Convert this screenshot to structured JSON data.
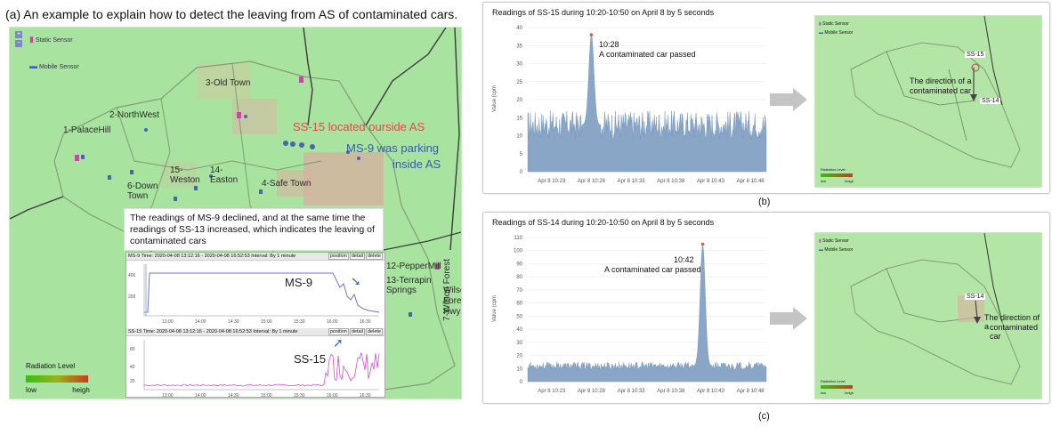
{
  "captions": {
    "a": "(a) An example to explain how to detect the leaving from AS of contaminated cars.",
    "b": "(b)",
    "c": "(c)"
  },
  "panel_a": {
    "legend": {
      "static": "Static Sensor",
      "mobile": "Mobile Sensor"
    },
    "districts": [
      "3-Old Town",
      "2-NorthWest",
      "1-PalaceHill",
      "6-Down Town",
      "15-Weston",
      "14-Easton",
      "4-Safe Town",
      "12-PepperMill",
      "13-Terrapin Springs",
      "7-Wilson Forest",
      "Wilson Forest Hwy"
    ],
    "ss15_label": "SS-15 located ourside AS",
    "ms9_label_1": "MS-9 was parking",
    "ms9_label_2": "inside AS",
    "note": "The readings of MS-9 declined, and at the same time the readings of SS-13 increased, which indicates the leaving of contaminated cars",
    "ms9_chart": {
      "header": "MS-9   Time: 2020-04-08 13:12:16 - 2020-04-08 16:52:53   Interval: By 1 minute",
      "buttons": [
        "position",
        "detail",
        "delete"
      ],
      "label": "MS-9",
      "y_ticks": [
        "400",
        "200"
      ],
      "x_ticks": [
        "13:00",
        "14:00",
        "14:30",
        "15:00",
        "15:30",
        "16:00",
        "16:30"
      ]
    },
    "ss15_chart": {
      "header": "SS-15   Time: 2020-04-08 13:12:16 - 2020-04-08 16:52:53   Interval: By 1 minute",
      "buttons": [
        "position",
        "detail",
        "delete"
      ],
      "label": "SS-15",
      "y_ticks": [
        "80",
        "40",
        "20"
      ],
      "x_ticks": [
        "13:00",
        "14:00",
        "14:30",
        "15:00",
        "15:30",
        "16:00",
        "16:30"
      ]
    },
    "radiation": {
      "title": "Radiation Level",
      "low": "low",
      "high": "heigh"
    }
  },
  "panel_b": {
    "title": "Readings of SS-15 during 10:20-10:50 on April 8 by 5 seconds",
    "ylabel": "Value (cpm",
    "annotation_time": "10:28",
    "annotation_text": "A contaminated car passed",
    "map": {
      "static": "Static Sensor",
      "mobile": "Mobile Sensor",
      "ss15": "SS-15",
      "ss14": "SS-14",
      "direction_1": "The direction of a",
      "direction_2": "contaminated car",
      "radiation": "Radiation Level",
      "low": "low",
      "high": "heigh"
    }
  },
  "panel_c": {
    "title": "Readings of SS-14 during 10:20-10:50 on April 8 by 5 seconds",
    "ylabel": "Value (cpm",
    "annotation_time": "10:42",
    "annotation_text": "A contaminated car passed",
    "map": {
      "static": "Static Sensor",
      "mobile": "Mobile Sensor",
      "ss14": "SS-14",
      "direction_1": "The direction of a",
      "direction_2": "contaminated car",
      "radiation": "Radiation Level",
      "low": "low",
      "high": "heigh"
    }
  },
  "chart_data": [
    {
      "type": "area",
      "title": "Readings of SS-15 during 10:20-10:50 on April 8 by 5 seconds",
      "ylabel": "Value (cpm",
      "ylim": [
        0,
        40
      ],
      "y_ticks": [
        0,
        5,
        10,
        15,
        20,
        25,
        30,
        35,
        40
      ],
      "x_ticks": [
        "Apr 8 10:23",
        "Apr 8 10:28",
        "Apr 8 10:33",
        "Apr 8 10:38",
        "Apr 8 10:43",
        "Apr 8 10:48"
      ],
      "x_range": [
        "10:20",
        "10:50"
      ],
      "baseline": 13,
      "noise": 4,
      "peak": {
        "x": "10:28",
        "value": 38
      },
      "color": "#89a6c7"
    },
    {
      "type": "area",
      "title": "Readings of SS-14 during 10:20-10:50 on April 8 by 5 seconds",
      "ylabel": "Value (cpm",
      "ylim": [
        0,
        110
      ],
      "y_ticks": [
        0,
        10,
        20,
        30,
        40,
        50,
        60,
        70,
        80,
        90,
        100,
        110
      ],
      "x_ticks": [
        "Apr 8 10:23",
        "Apr 8 10:28",
        "Apr 8 10:33",
        "Apr 8 10:38",
        "Apr 8 10:43",
        "Apr 8 10:48"
      ],
      "x_range": [
        "10:20",
        "10:50"
      ],
      "baseline": 12,
      "noise": 3,
      "peak": {
        "x": "10:42",
        "value": 105
      },
      "color": "#89a6c7"
    }
  ]
}
